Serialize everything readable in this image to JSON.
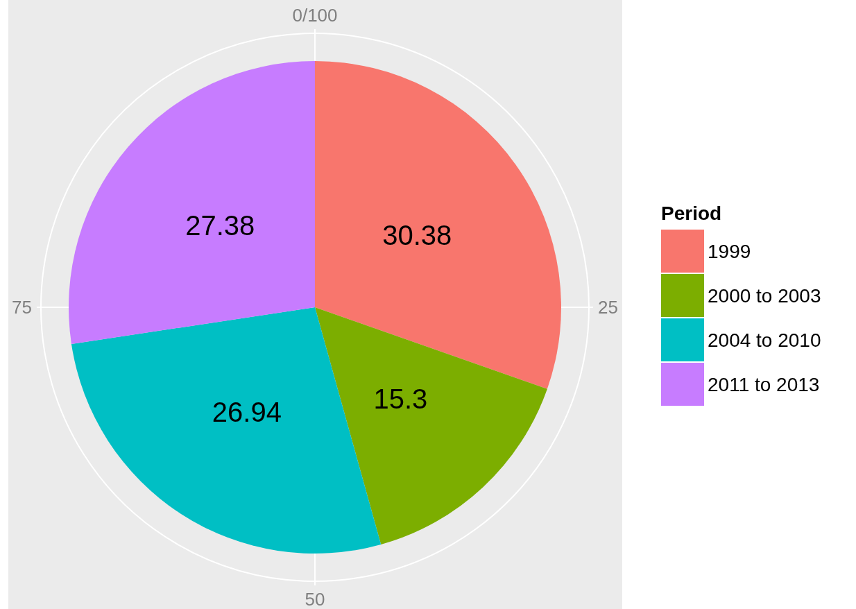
{
  "chart_data": {
    "type": "pie",
    "categories": [
      "1999",
      "2000 to 2003",
      "2004 to 2010",
      "2011 to 2013"
    ],
    "values": [
      30.38,
      15.3,
      26.94,
      27.38
    ],
    "colors": [
      "#f8766d",
      "#7cae00",
      "#00bfc4",
      "#c77cff"
    ],
    "annotations": [
      "0/100",
      "25",
      "50",
      "75"
    ],
    "legend_title": "Period",
    "legend": "right",
    "grid": true,
    "data_labels": true
  }
}
